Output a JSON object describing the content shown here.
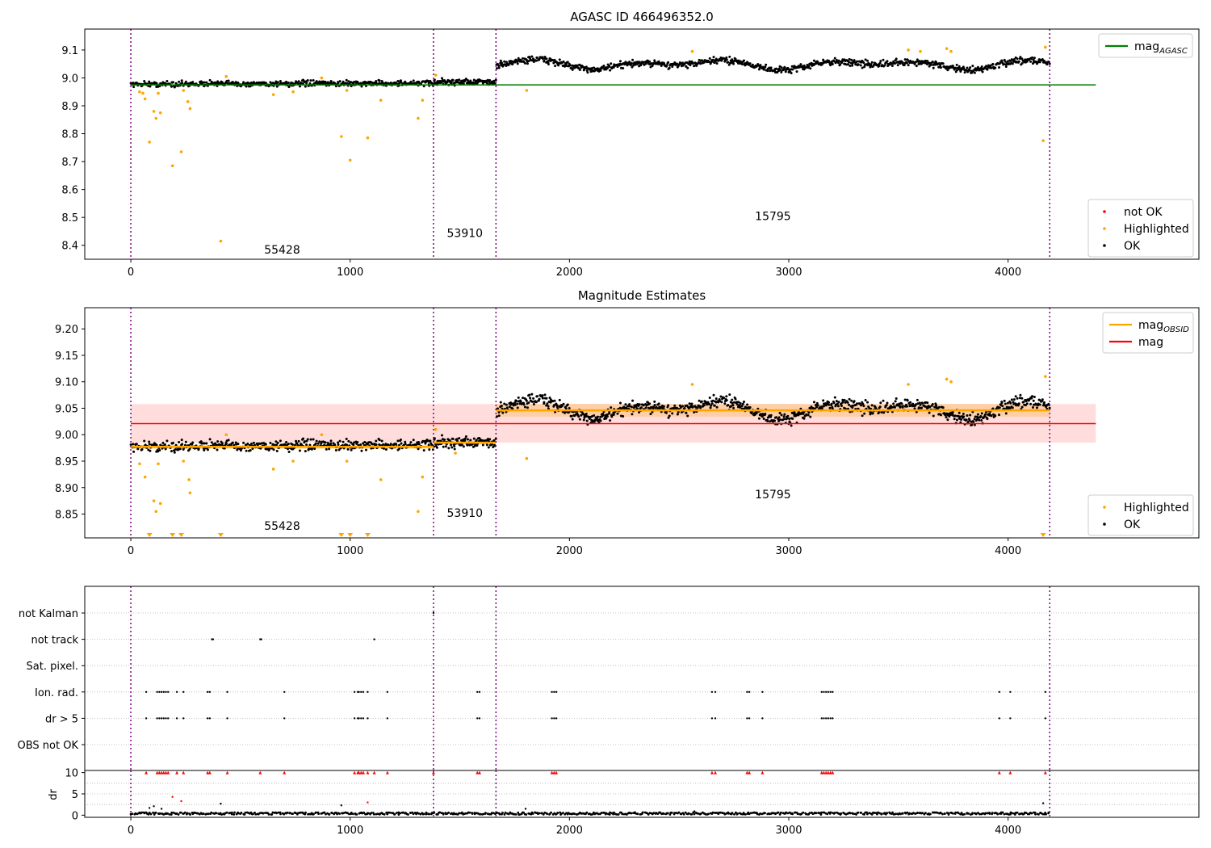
{
  "chart_data": [
    {
      "id": "agasc",
      "type": "scatter",
      "title": "AGASC ID 466496352.0",
      "xlim": [
        -210,
        4870
      ],
      "ylim": [
        8.35,
        9.175
      ],
      "x_ticks": [
        "0",
        "1000",
        "2000",
        "3000",
        "4000"
      ],
      "x_tick_values": [
        0,
        1000,
        2000,
        3000,
        4000
      ],
      "y_ticks": [
        "8.4",
        "8.5",
        "8.6",
        "8.7",
        "8.8",
        "8.9",
        "9.0",
        "9.1"
      ],
      "y_tick_values": [
        8.4,
        8.5,
        8.6,
        8.7,
        8.8,
        8.9,
        9.0,
        9.1
      ],
      "obsid_boundaries": [
        0,
        1380,
        1665,
        4190
      ],
      "obsid_labels": [
        {
          "text": "55428",
          "x": 690,
          "y": 8.37
        },
        {
          "text": "53910",
          "x": 1523,
          "y": 8.43
        },
        {
          "text": "15795",
          "x": 2928,
          "y": 8.49
        }
      ],
      "reference_line": {
        "name": "mag_AGASC",
        "y": 8.975,
        "x": [
          0,
          4400
        ],
        "color": "#008000"
      },
      "series": [
        {
          "name": "not OK",
          "color": "#ff0000"
        },
        {
          "name": "Highlighted",
          "color": "#ffa500",
          "points": [
            [
              40,
              8.95
            ],
            [
              55,
              8.945
            ],
            [
              65,
              8.925
            ],
            [
              85,
              8.77
            ],
            [
              105,
              8.88
            ],
            [
              115,
              8.855
            ],
            [
              125,
              8.945
            ],
            [
              135,
              8.875
            ],
            [
              190,
              8.685
            ],
            [
              230,
              8.735
            ],
            [
              240,
              8.955
            ],
            [
              260,
              8.915
            ],
            [
              270,
              8.89
            ],
            [
              410,
              8.415
            ],
            [
              435,
              9.005
            ],
            [
              650,
              8.94
            ],
            [
              740,
              8.95
            ],
            [
              870,
              9.0
            ],
            [
              960,
              8.79
            ],
            [
              985,
              8.955
            ],
            [
              1000,
              8.705
            ],
            [
              1080,
              8.785
            ],
            [
              1140,
              8.92
            ],
            [
              1310,
              8.855
            ],
            [
              1330,
              8.92
            ],
            [
              1390,
              9.01
            ],
            [
              1805,
              8.955
            ],
            [
              2560,
              9.095
            ],
            [
              3545,
              9.1
            ],
            [
              3600,
              9.095
            ],
            [
              3720,
              9.105
            ],
            [
              3740,
              9.095
            ],
            [
              4160,
              8.775
            ],
            [
              4170,
              9.11
            ]
          ]
        },
        {
          "name": "OK",
          "color": "#000000",
          "segments": [
            {
              "x0": 0,
              "x1": 1380,
              "base": 8.978,
              "slope": 2e-06,
              "amp": 0.01,
              "n": 460
            },
            {
              "x0": 1380,
              "x1": 1665,
              "base": 8.985,
              "slope": 0,
              "amp": 0.01,
              "n": 110
            },
            {
              "x0": 1665,
              "x1": 4190,
              "base": 9.048,
              "slope": 0,
              "amp": 0.012,
              "n": 900,
              "wave": 0.02
            }
          ]
        }
      ],
      "legend_upper": [
        {
          "label": "mag",
          "subscript": "AGASC",
          "color": "#008000"
        }
      ],
      "legend_lower": [
        {
          "label": "not OK",
          "color": "#ff0000"
        },
        {
          "label": "Highlighted",
          "color": "#ffa500"
        },
        {
          "label": "OK",
          "color": "#000000"
        }
      ]
    },
    {
      "id": "estimates",
      "type": "scatter",
      "title": "Magnitude Estimates",
      "xlim": [
        -210,
        4870
      ],
      "ylim": [
        8.805,
        9.24
      ],
      "x_ticks": [
        "0",
        "1000",
        "2000",
        "3000",
        "4000"
      ],
      "x_tick_values": [
        0,
        1000,
        2000,
        3000,
        4000
      ],
      "y_ticks": [
        "8.85",
        "8.90",
        "8.95",
        "9.00",
        "9.05",
        "9.10",
        "9.15",
        "9.20"
      ],
      "y_tick_values": [
        8.85,
        8.9,
        8.95,
        9.0,
        9.05,
        9.1,
        9.15,
        9.2
      ],
      "obsid_boundaries": [
        0,
        1380,
        1665,
        4190
      ],
      "obsid_labels": [
        {
          "text": "55428",
          "x": 690,
          "y": 8.82
        },
        {
          "text": "53910",
          "x": 1523,
          "y": 8.845
        },
        {
          "text": "15795",
          "x": 2928,
          "y": 8.88
        }
      ],
      "mag_band": {
        "y0": 8.985,
        "y1": 9.058,
        "x": [
          0,
          4400
        ],
        "color": "#ffdddd"
      },
      "mag_line": {
        "name": "mag",
        "y": 9.021,
        "x": [
          0,
          4400
        ],
        "color": "#ff0000"
      },
      "obsid_mags": [
        {
          "x0": 0,
          "x1": 1380,
          "y": 8.977,
          "band": 0.004
        },
        {
          "x0": 1380,
          "x1": 1665,
          "y": 8.985,
          "band": 0.004
        },
        {
          "x0": 1665,
          "x1": 4190,
          "y": 9.046,
          "band": 0.012
        }
      ],
      "series": [
        {
          "name": "Highlighted",
          "color": "#ffa500",
          "points": [
            [
              40,
              8.945
            ],
            [
              65,
              8.92
            ],
            [
              105,
              8.875
            ],
            [
              115,
              8.855
            ],
            [
              125,
              8.945
            ],
            [
              135,
              8.87
            ],
            [
              240,
              8.95
            ],
            [
              265,
              8.915
            ],
            [
              270,
              8.89
            ],
            [
              435,
              9.0
            ],
            [
              650,
              8.935
            ],
            [
              740,
              8.95
            ],
            [
              870,
              9.0
            ],
            [
              985,
              8.95
            ],
            [
              1140,
              8.915
            ],
            [
              1310,
              8.855
            ],
            [
              1330,
              8.92
            ],
            [
              1390,
              9.01
            ],
            [
              1480,
              8.965
            ],
            [
              1805,
              8.955
            ],
            [
              2560,
              9.095
            ],
            [
              3545,
              9.095
            ],
            [
              3720,
              9.105
            ],
            [
              3740,
              9.1
            ],
            [
              4170,
              9.11
            ]
          ],
          "clipped": [
            85,
            190,
            230,
            410,
            960,
            1000,
            1080,
            4160
          ]
        },
        {
          "name": "OK",
          "color": "#000000",
          "segments": [
            {
              "x0": 0,
              "x1": 1380,
              "base": 8.978,
              "slope": 2e-06,
              "amp": 0.01,
              "n": 460
            },
            {
              "x0": 1380,
              "x1": 1665,
              "base": 8.985,
              "slope": 0,
              "amp": 0.01,
              "n": 110
            },
            {
              "x0": 1665,
              "x1": 4190,
              "base": 9.048,
              "slope": 0,
              "amp": 0.012,
              "n": 900,
              "wave": 0.02
            }
          ]
        }
      ],
      "legend_upper": [
        {
          "label": "mag",
          "subscript": "OBSID",
          "color": "#ffa500"
        },
        {
          "label": "mag",
          "subscript": "",
          "color": "#ff0000"
        }
      ],
      "legend_lower": [
        {
          "label": "Highlighted",
          "color": "#ffa500"
        },
        {
          "label": "OK",
          "color": "#000000"
        }
      ]
    },
    {
      "id": "flags",
      "type": "scatter",
      "xlim": [
        -210,
        4870
      ],
      "categories": [
        "not Kalman",
        "not track",
        "Sat. pixel.",
        "Ion. rad.",
        "dr > 5",
        "OBS not OK"
      ],
      "obsid_boundaries": [
        0,
        1380,
        1665,
        4190
      ],
      "flag_points": {
        "not Kalman": [
          1380
        ],
        "not track": [
          370,
          375,
          590,
          595,
          1110
        ],
        "Sat. pixel.": [],
        "Ion. rad.": [
          70,
          120,
          130,
          140,
          150,
          160,
          170,
          210,
          240,
          350,
          360,
          440,
          700,
          1020,
          1035,
          1040,
          1050,
          1060,
          1080,
          1170,
          1580,
          1590,
          1920,
          1930,
          1940,
          2650,
          2665,
          2810,
          2820,
          2880,
          3150,
          3160,
          3170,
          3180,
          3190,
          3200,
          3960,
          4010,
          4170
        ],
        "dr > 5": [
          70,
          120,
          130,
          140,
          150,
          160,
          170,
          210,
          240,
          350,
          360,
          440,
          700,
          1020,
          1035,
          1040,
          1050,
          1060,
          1080,
          1170,
          1580,
          1590,
          1920,
          1930,
          1940,
          2650,
          2665,
          2810,
          2820,
          2880,
          3150,
          3160,
          3170,
          3180,
          3190,
          3200,
          3960,
          4010,
          4170
        ],
        "OBS not OK": []
      }
    },
    {
      "id": "dr",
      "type": "scatter",
      "ylabel": "dr",
      "xlim": [
        -210,
        4870
      ],
      "ylim": [
        -0.5,
        10.5
      ],
      "x_ticks": [
        "0",
        "1000",
        "2000",
        "3000",
        "4000"
      ],
      "x_tick_values": [
        0,
        1000,
        2000,
        3000,
        4000
      ],
      "y_ticks": [
        "0",
        "5",
        "10"
      ],
      "y_tick_values": [
        0,
        5,
        10
      ],
      "obsid_boundaries": [
        0,
        1380,
        1665,
        4190
      ],
      "clipped_red": [
        70,
        120,
        130,
        140,
        150,
        160,
        170,
        210,
        240,
        350,
        360,
        440,
        590,
        700,
        1020,
        1035,
        1040,
        1050,
        1060,
        1080,
        1110,
        1170,
        1380,
        1580,
        1590,
        1920,
        1930,
        1940,
        2650,
        2665,
        2810,
        2820,
        2880,
        3150,
        3160,
        3170,
        3180,
        3190,
        3200,
        3960,
        4010,
        4170
      ],
      "outliers_red": [
        [
          190,
          4.3
        ],
        [
          230,
          3.3
        ],
        [
          1080,
          3.0
        ]
      ],
      "outliers_black": [
        [
          85,
          1.7
        ],
        [
          105,
          2.1
        ],
        [
          140,
          1.5
        ],
        [
          410,
          2.7
        ],
        [
          960,
          2.3
        ],
        [
          1800,
          1.5
        ],
        [
          2570,
          0.9
        ],
        [
          4160,
          2.8
        ]
      ],
      "baseline": {
        "x0": 0,
        "x1": 4190,
        "y": 0.4,
        "amp": 0.25,
        "n": 700
      }
    }
  ]
}
